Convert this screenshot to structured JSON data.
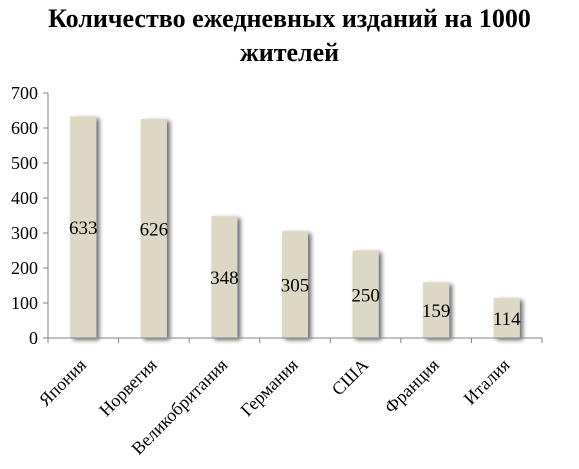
{
  "chart_data": {
    "type": "bar",
    "title": "Количество ежедневных изданий на 1000 жителей",
    "categories": [
      "Япония",
      "Норвегия",
      "Великобритания",
      "Германия",
      "США",
      "Франция",
      "Италия"
    ],
    "values": [
      633,
      626,
      348,
      305,
      250,
      159,
      114
    ],
    "data_labels": [
      "633",
      "626",
      "348",
      "305",
      "250",
      "159",
      "114"
    ],
    "ylim": [
      0,
      700
    ],
    "yticks": [
      0,
      100,
      200,
      300,
      400,
      500,
      600,
      700
    ],
    "grid": false,
    "legend": "none",
    "bar_color": "#ddd8c4",
    "bar_shadow_color": "#7f7f7f",
    "axis_color": "#868686"
  }
}
